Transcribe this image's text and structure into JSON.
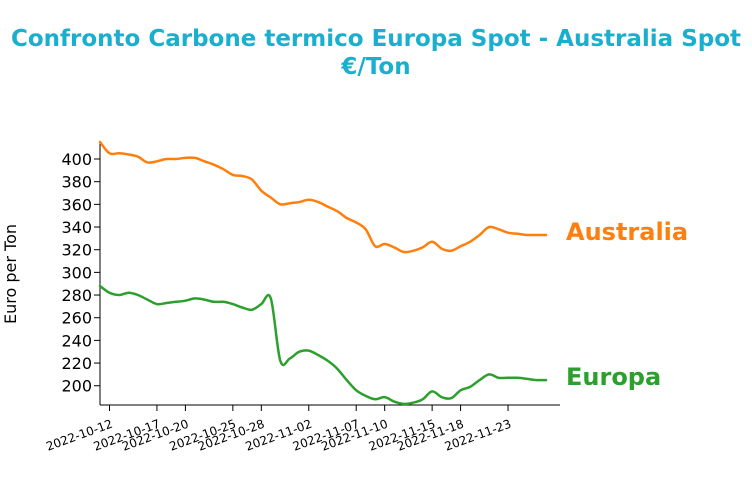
{
  "chart_data": {
    "type": "line",
    "title_line1": "Confronto Carbone termico Europa Spot - Australia Spot",
    "title_line2": "€/Ton",
    "ylabel": "Euro per Ton",
    "xlabel": "",
    "ylim": [
      183,
      415
    ],
    "yticks": [
      200,
      220,
      240,
      260,
      280,
      300,
      320,
      340,
      360,
      380,
      400
    ],
    "xticks": [
      "2022-10-12",
      "2022-10-17",
      "2022-10-20",
      "2022-10-25",
      "2022-10-28",
      "2022-11-02",
      "2022-11-07",
      "2022-11-10",
      "2022-11-15",
      "2022-11-18",
      "2022-11-23"
    ],
    "grid": false,
    "x": [
      "2022-10-11",
      "2022-10-12",
      "2022-10-13",
      "2022-10-14",
      "2022-10-15",
      "2022-10-16",
      "2022-10-17",
      "2022-10-18",
      "2022-10-19",
      "2022-10-20",
      "2022-10-21",
      "2022-10-22",
      "2022-10-23",
      "2022-10-24",
      "2022-10-25",
      "2022-10-26",
      "2022-10-27",
      "2022-10-28",
      "2022-10-29",
      "2022-10-30",
      "2022-10-31",
      "2022-11-01",
      "2022-11-02",
      "2022-11-03",
      "2022-11-04",
      "2022-11-05",
      "2022-11-06",
      "2022-11-07",
      "2022-11-08",
      "2022-11-09",
      "2022-11-10",
      "2022-11-11",
      "2022-11-12",
      "2022-11-13",
      "2022-11-14",
      "2022-11-15",
      "2022-11-16",
      "2022-11-17",
      "2022-11-18",
      "2022-11-19",
      "2022-11-20",
      "2022-11-21",
      "2022-11-22",
      "2022-11-23",
      "2022-11-24",
      "2022-11-25",
      "2022-11-26",
      "2022-11-27"
    ],
    "series": [
      {
        "name": "Australia",
        "color": "#ff7f0e",
        "values": [
          415,
          405,
          405,
          404,
          402,
          397,
          398,
          400,
          400,
          401,
          401,
          398,
          395,
          391,
          386,
          385,
          382,
          372,
          366,
          360,
          361,
          362,
          364,
          362,
          358,
          354,
          348,
          344,
          338,
          323,
          325,
          322,
          318,
          319,
          322,
          327,
          321,
          319,
          323,
          327,
          333,
          340,
          338,
          335,
          334,
          333,
          333,
          333
        ]
      },
      {
        "name": "Europa",
        "color": "#2ca02c",
        "values": [
          288,
          282,
          280,
          282,
          280,
          276,
          272,
          273,
          274,
          275,
          277,
          276,
          274,
          274,
          272,
          269,
          267,
          272,
          277,
          222,
          224,
          230,
          231,
          227,
          222,
          215,
          205,
          196,
          191,
          188,
          190,
          186,
          184,
          185,
          188,
          195,
          190,
          189,
          196,
          199,
          205,
          210,
          207,
          207,
          207,
          206,
          205,
          205
        ]
      }
    ]
  }
}
